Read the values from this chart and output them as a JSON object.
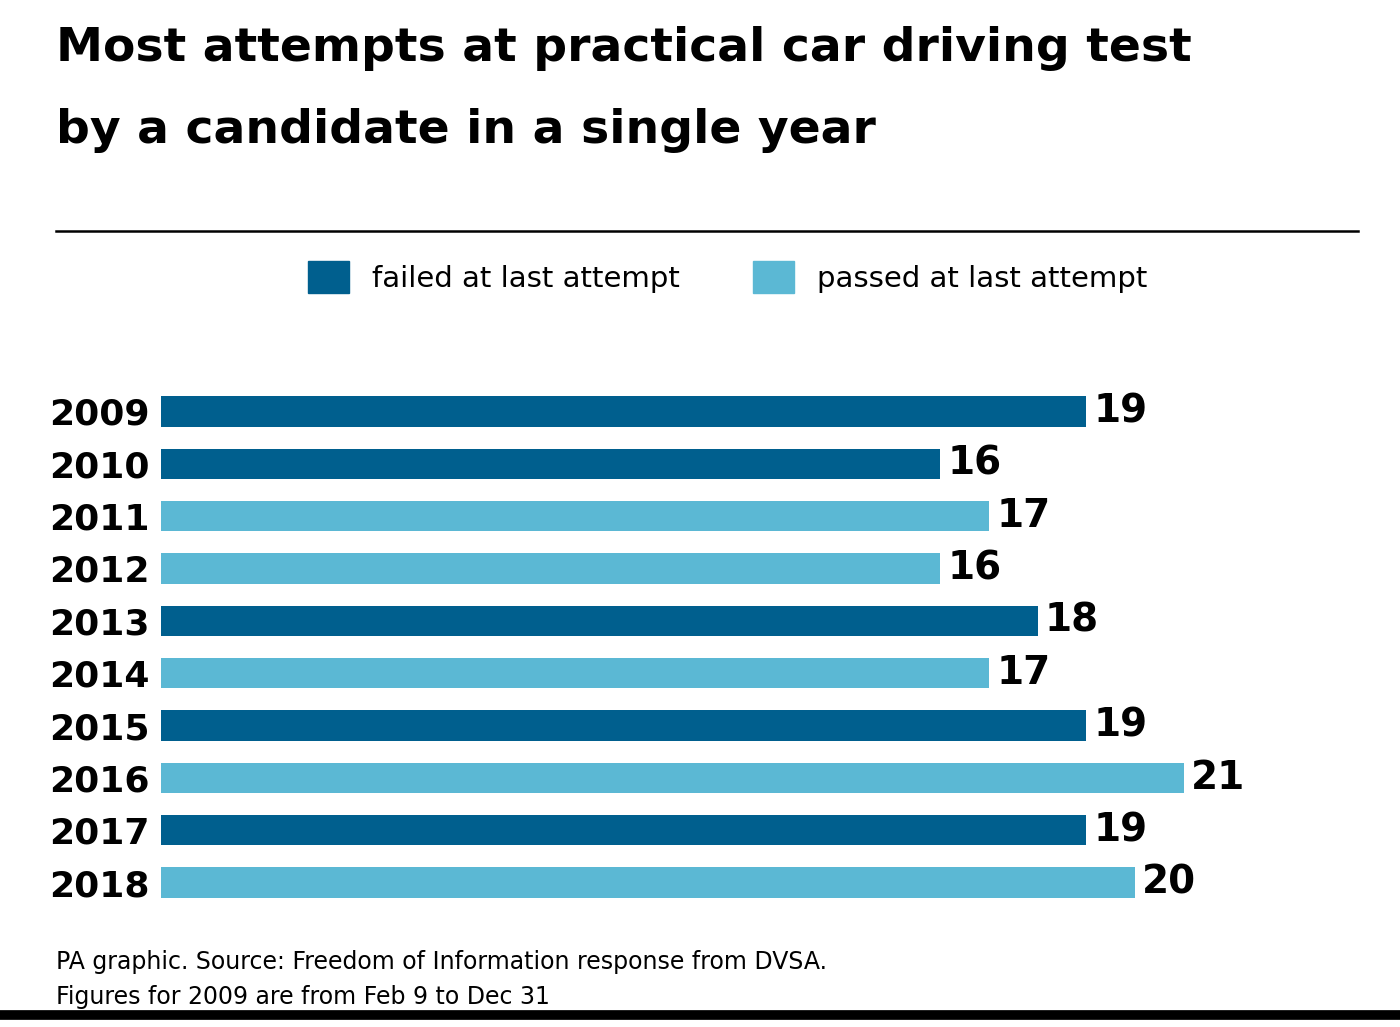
{
  "title_line1": "Most attempts at practical car driving test",
  "title_line2": "by a candidate in a single year",
  "years": [
    "2009",
    "2010",
    "2011",
    "2012",
    "2013",
    "2014",
    "2015",
    "2016",
    "2017",
    "2018"
  ],
  "values": [
    19,
    16,
    17,
    16,
    18,
    17,
    19,
    21,
    19,
    20
  ],
  "bar_types": [
    "failed",
    "failed",
    "passed",
    "passed",
    "failed",
    "passed",
    "failed",
    "passed",
    "failed",
    "passed"
  ],
  "color_failed": "#005f8e",
  "color_passed": "#5bb8d4",
  "value_label_color": "#000000",
  "title_color": "#000000",
  "background_color": "#ffffff",
  "title_fontsize": 34,
  "year_fontsize": 26,
  "value_fontsize": 28,
  "legend_fontsize": 21,
  "footnote": "PA graphic. Source: Freedom of Information response from DVSA.\nFigures for 2009 are from Feb 9 to Dec 31",
  "footnote_fontsize": 17,
  "legend_failed": "failed at last attempt",
  "legend_passed": "passed at last attempt",
  "xlim": [
    0,
    23
  ]
}
